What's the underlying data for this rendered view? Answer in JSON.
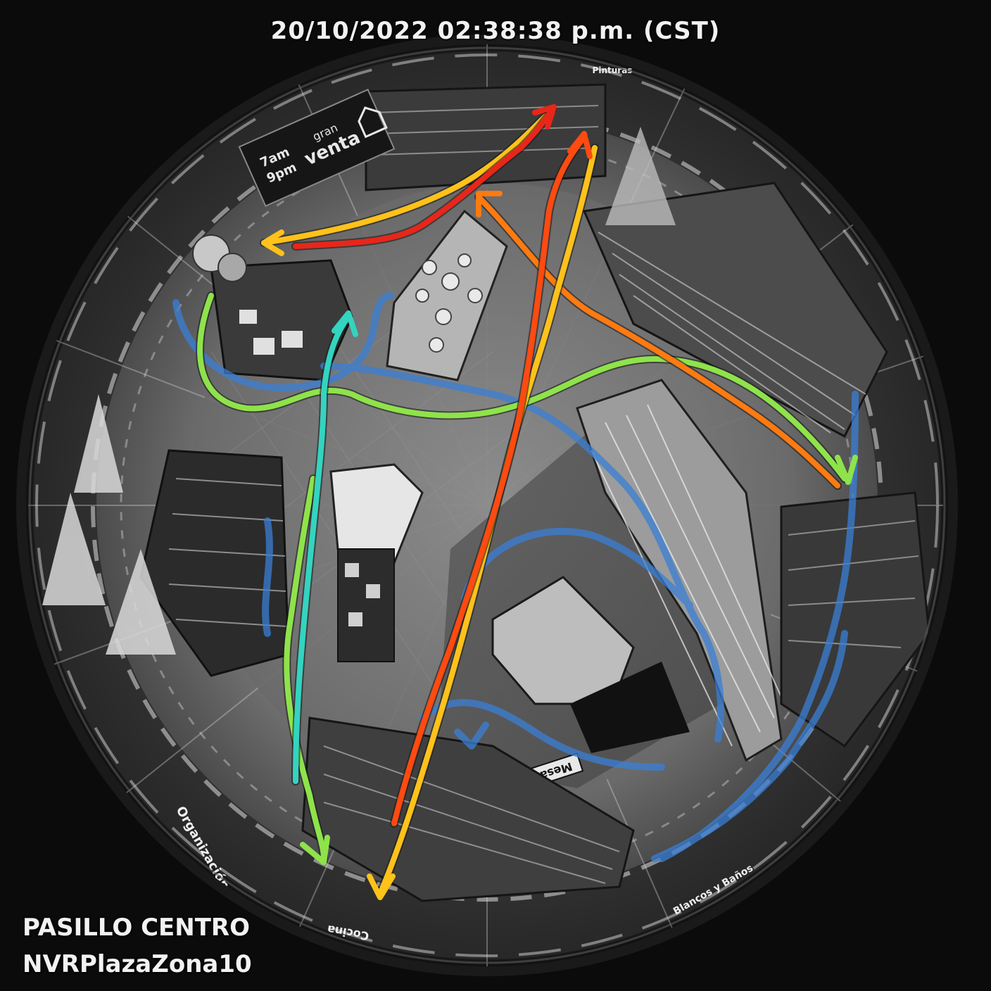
{
  "osd": {
    "timestamp": "20/10/2022 02:38:38 p.m. (CST)",
    "camera_zone": "PASILLO CENTRO",
    "camera_id": "NVRPlazaZona10"
  },
  "store_signs": {
    "banner_line1": "gran",
    "banner_line2": "venta",
    "hours_open": "7am",
    "hours_close": "9pm",
    "pinturas": "Pinturas",
    "mesa": "Mesa",
    "organizacion": "Organización",
    "cocina": "Cocina",
    "blancos_banos": "Blancos y Baños"
  },
  "path_colors": {
    "red": "#e8261a",
    "orange_red": "#ff4a10",
    "orange": "#ff7a10",
    "yellow": "#ffc21a",
    "green": "#8ee34a",
    "teal": "#33d4c0",
    "blue": "#3a7fd6"
  }
}
